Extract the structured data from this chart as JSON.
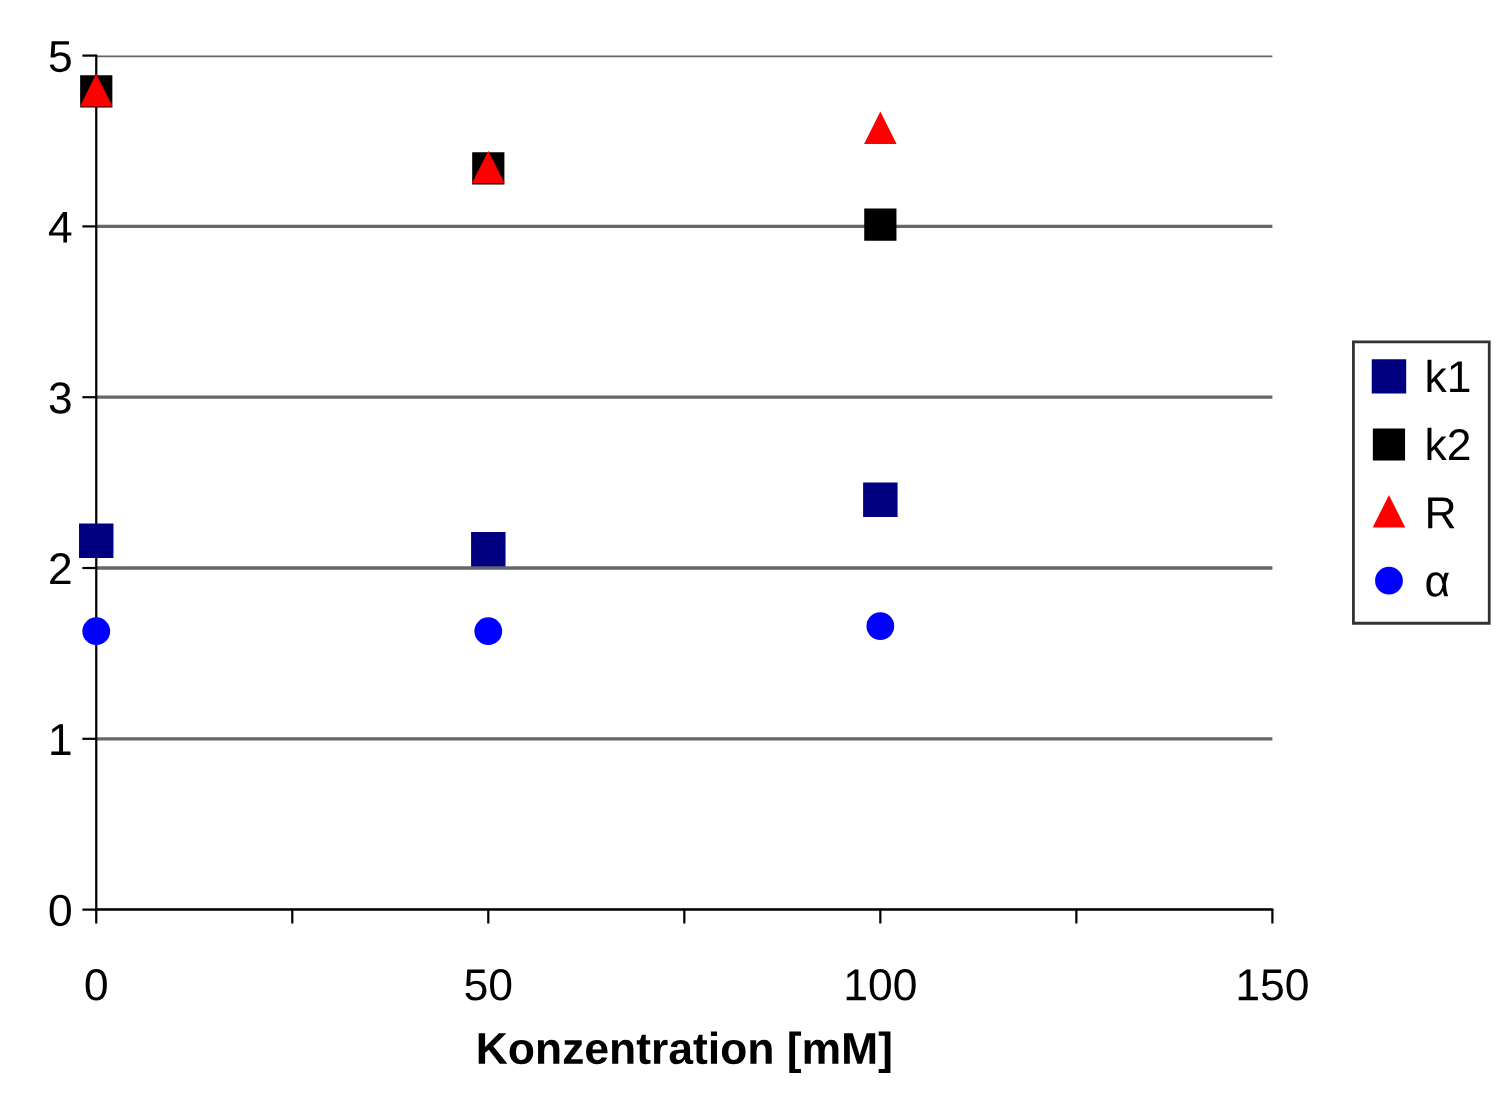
{
  "chart_data": {
    "type": "scatter",
    "xlabel": "Konzentration [mM]",
    "x": [
      0,
      50,
      100
    ],
    "series": [
      {
        "name": "k1",
        "color": "#000080",
        "marker": "square",
        "values": [
          2.16,
          2.11,
          2.4
        ]
      },
      {
        "name": "k2",
        "color": "#000000",
        "marker": "square",
        "values": [
          4.79,
          4.34,
          4.01
        ]
      },
      {
        "name": "R",
        "color": "#ff0000",
        "marker": "triangle",
        "values": [
          4.79,
          4.34,
          4.57
        ]
      },
      {
        "name": "α",
        "color": "#0000ff",
        "marker": "circle",
        "values": [
          1.63,
          1.63,
          1.66
        ]
      }
    ],
    "xlim": [
      0,
      150
    ],
    "ylim": [
      0,
      5
    ],
    "xticks": [
      0,
      {
        "value": 25,
        "label": null
      },
      50,
      {
        "value": 75,
        "label": null
      },
      100,
      {
        "value": 125,
        "label": null
      },
      150
    ],
    "yticks": [
      0,
      1,
      2,
      3,
      4,
      5
    ],
    "grid": "y",
    "legend": "right"
  }
}
